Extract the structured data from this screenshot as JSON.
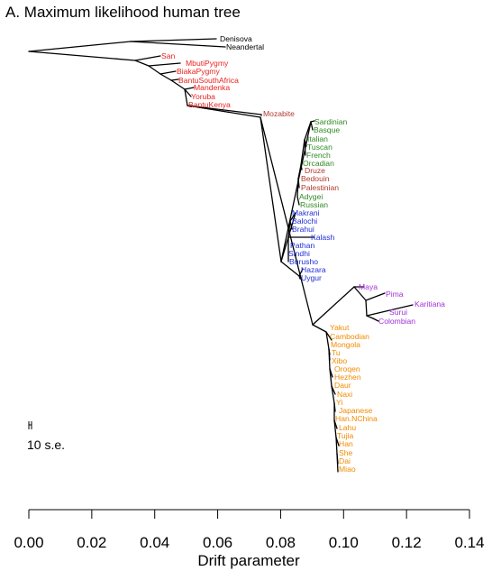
{
  "title": "A. Maximum likelihood human tree",
  "colors": {
    "edge": "#000000",
    "africa": "#e8231f",
    "west_eurasia": "#2e8b22",
    "middle_east": "#b03a2e",
    "south_central_asia": "#1f2fd8",
    "america": "#a330d8",
    "east_asia": "#f28a00",
    "archaic": "#000000"
  },
  "axis": {
    "title": "Drift parameter",
    "ticks": [
      "0.00",
      "0.02",
      "0.04",
      "0.06",
      "0.08",
      "0.10",
      "0.12",
      "0.14"
    ],
    "tick_values": [
      0,
      0.02,
      0.04,
      0.06,
      0.08,
      0.1,
      0.12,
      0.14
    ]
  },
  "scale_bar": {
    "label": "10 s.e."
  },
  "leaves": [
    {
      "name": "Denisova",
      "group": "archaic"
    },
    {
      "name": "Neandertal",
      "group": "archaic"
    },
    {
      "name": "San",
      "group": "africa"
    },
    {
      "name": "MbutiPygmy",
      "group": "africa"
    },
    {
      "name": "BiakaPygmy",
      "group": "africa"
    },
    {
      "name": "BantuSouthAfrica",
      "group": "africa"
    },
    {
      "name": "Mandenka",
      "group": "africa"
    },
    {
      "name": "Yoruba",
      "group": "africa"
    },
    {
      "name": "BantuKenya",
      "group": "africa"
    },
    {
      "name": "Mozabite",
      "group": "middle_east"
    },
    {
      "name": "Sardinian",
      "group": "west_eurasia"
    },
    {
      "name": "Basque",
      "group": "west_eurasia"
    },
    {
      "name": "Italian",
      "group": "west_eurasia"
    },
    {
      "name": "Tuscan",
      "group": "west_eurasia"
    },
    {
      "name": "French",
      "group": "west_eurasia"
    },
    {
      "name": "Orcadian",
      "group": "west_eurasia"
    },
    {
      "name": "Druze",
      "group": "middle_east"
    },
    {
      "name": "Bedouin",
      "group": "middle_east"
    },
    {
      "name": "Palestinian",
      "group": "middle_east"
    },
    {
      "name": "Adygei",
      "group": "west_eurasia"
    },
    {
      "name": "Russian",
      "group": "west_eurasia"
    },
    {
      "name": "Makrani",
      "group": "south_central_asia"
    },
    {
      "name": "Balochi",
      "group": "south_central_asia"
    },
    {
      "name": "Brahui",
      "group": "south_central_asia"
    },
    {
      "name": "Kalash",
      "group": "south_central_asia"
    },
    {
      "name": "Pathan",
      "group": "south_central_asia"
    },
    {
      "name": "Sindhi",
      "group": "south_central_asia"
    },
    {
      "name": "Burusho",
      "group": "south_central_asia"
    },
    {
      "name": "Hazara",
      "group": "south_central_asia"
    },
    {
      "name": "Uygur",
      "group": "south_central_asia"
    },
    {
      "name": "Maya",
      "group": "america"
    },
    {
      "name": "Pima",
      "group": "america"
    },
    {
      "name": "Karitiana",
      "group": "america"
    },
    {
      "name": "Surui",
      "group": "america"
    },
    {
      "name": "Colombian",
      "group": "america"
    },
    {
      "name": "Yakut",
      "group": "east_asia"
    },
    {
      "name": "Cambodian",
      "group": "east_asia"
    },
    {
      "name": "Mongola",
      "group": "east_asia"
    },
    {
      "name": "Tu",
      "group": "east_asia"
    },
    {
      "name": "Xibo",
      "group": "east_asia"
    },
    {
      "name": "Oroqen",
      "group": "east_asia"
    },
    {
      "name": "Hezhen",
      "group": "east_asia"
    },
    {
      "name": "Daur",
      "group": "east_asia"
    },
    {
      "name": "Naxi",
      "group": "east_asia"
    },
    {
      "name": "Yi",
      "group": "east_asia"
    },
    {
      "name": "Japanese",
      "group": "east_asia"
    },
    {
      "name": "Han.NChina",
      "group": "east_asia"
    },
    {
      "name": "Lahu",
      "group": "east_asia"
    },
    {
      "name": "Tujia",
      "group": "east_asia"
    },
    {
      "name": "Han",
      "group": "east_asia"
    },
    {
      "name": "She",
      "group": "east_asia"
    },
    {
      "name": "Dai",
      "group": "east_asia"
    },
    {
      "name": "Miao",
      "group": "east_asia"
    }
  ]
}
